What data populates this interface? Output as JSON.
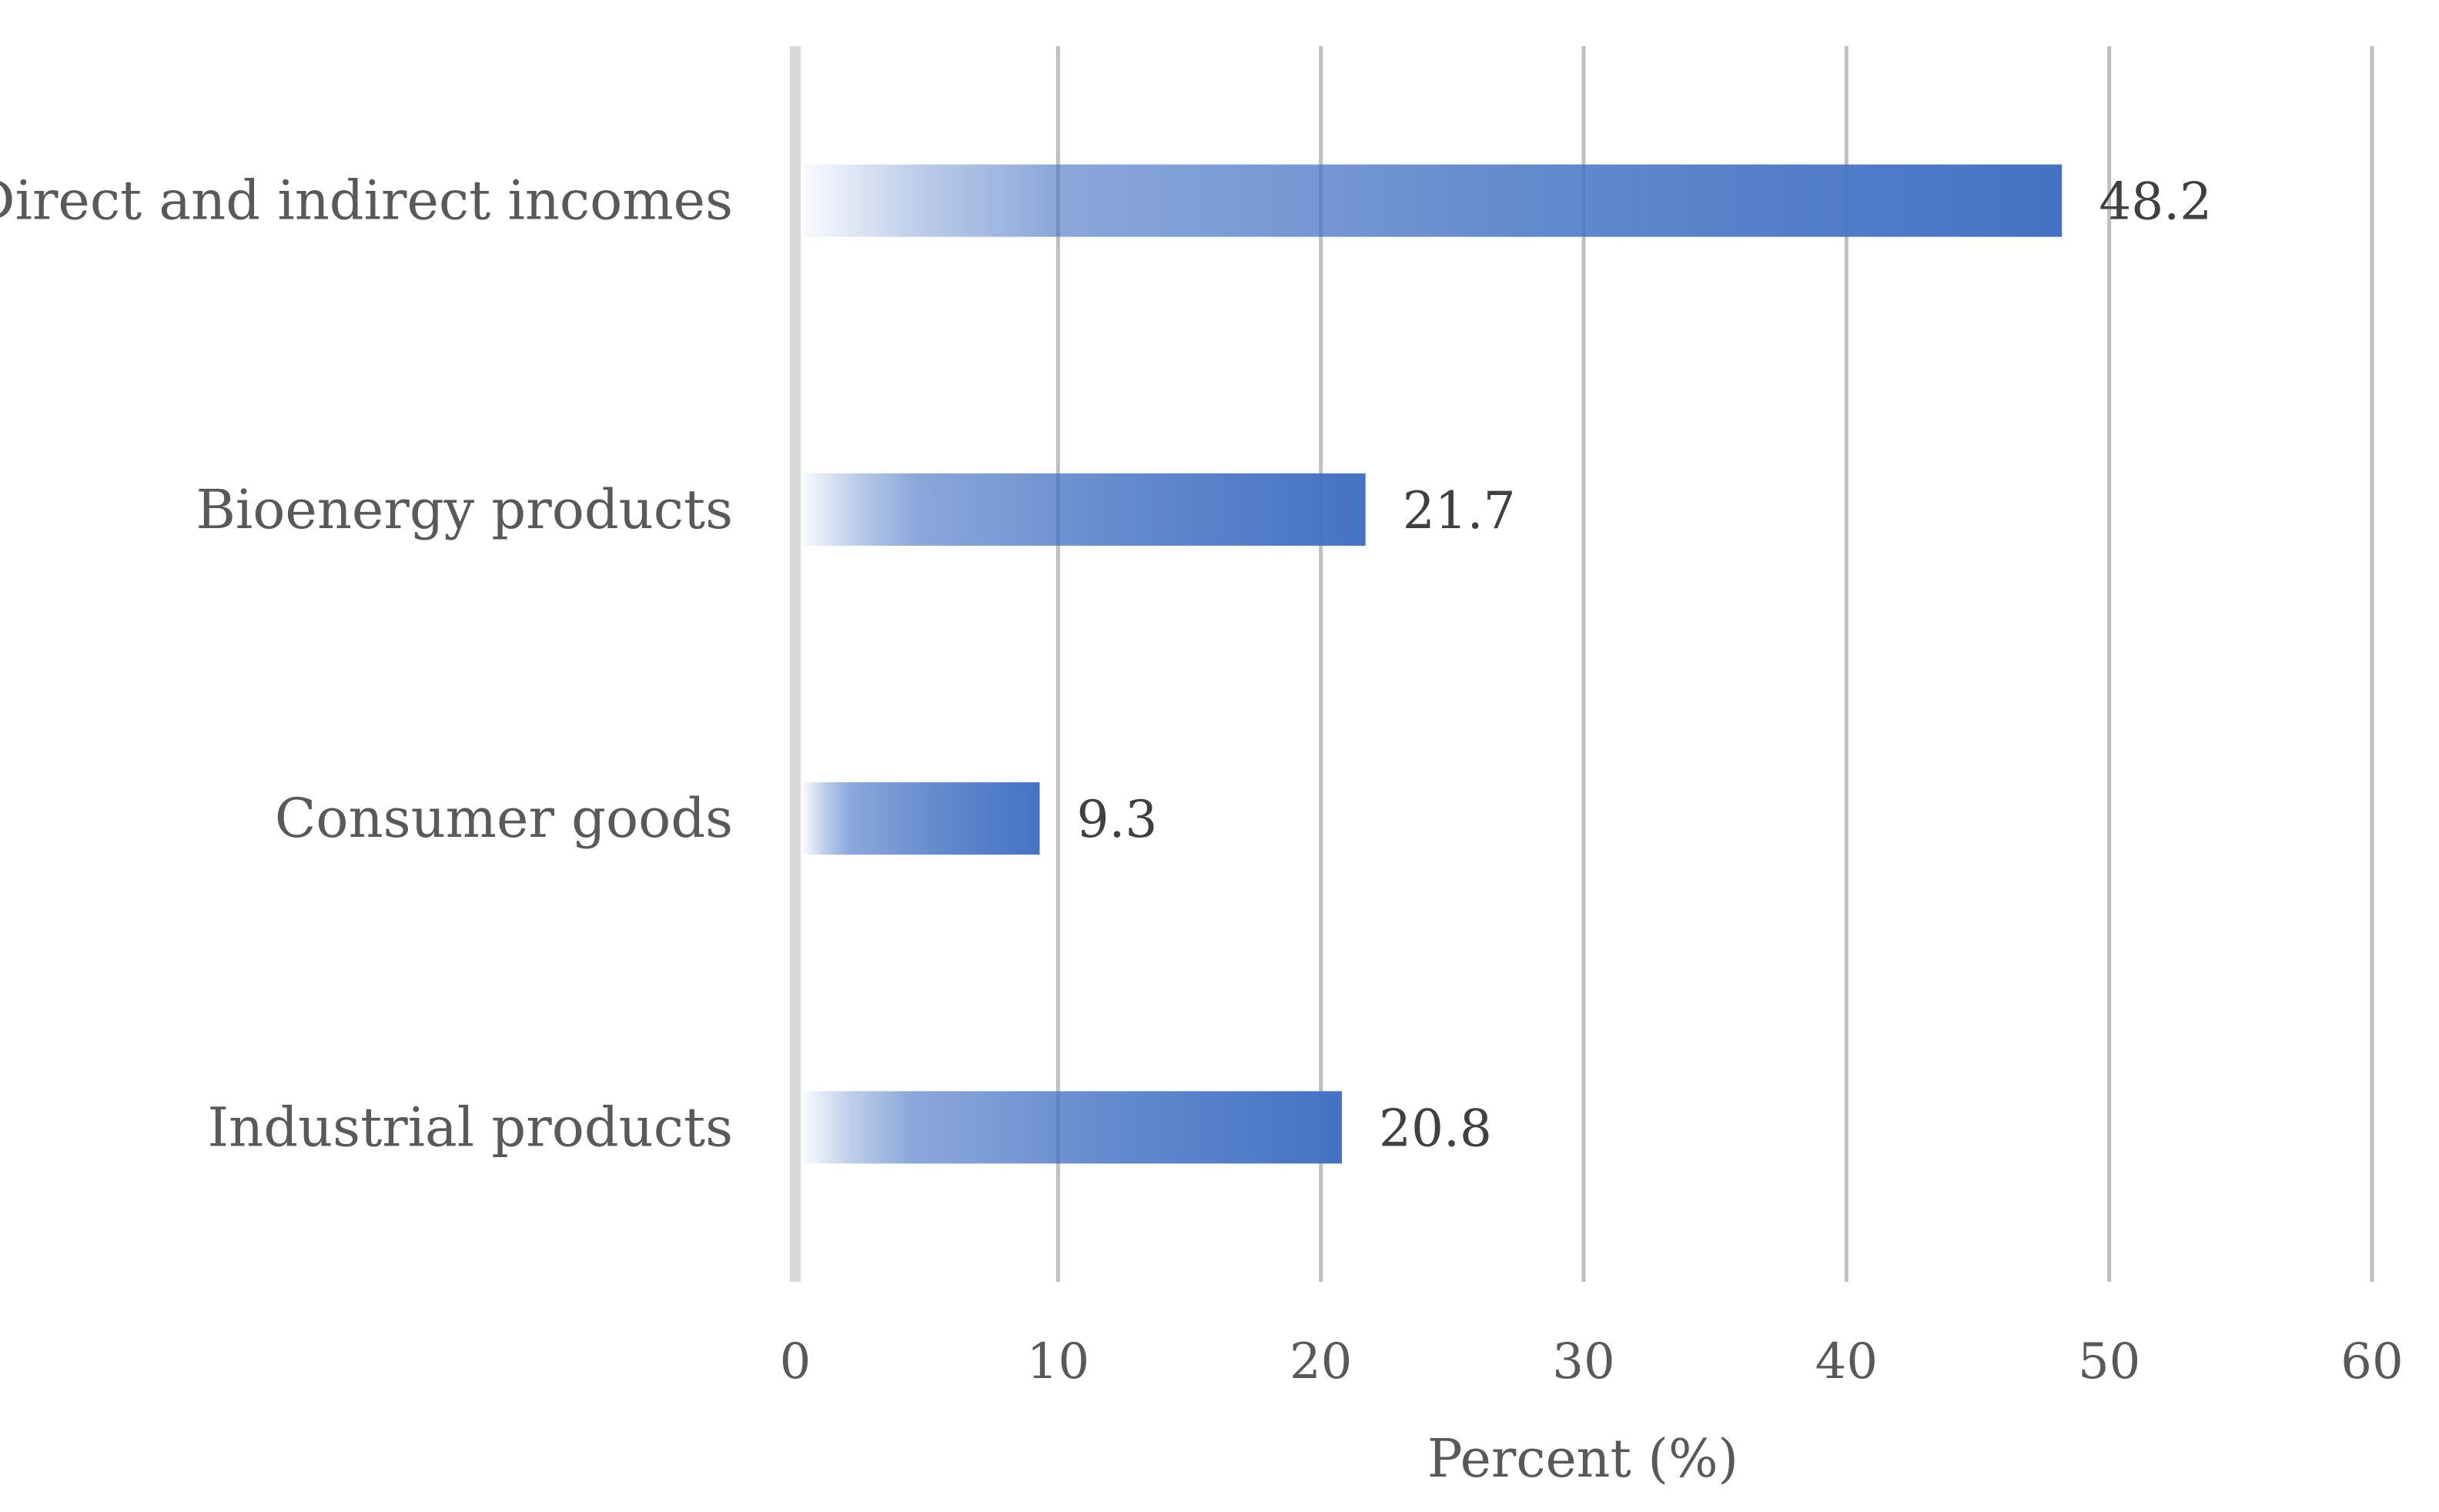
{
  "chart_data": {
    "type": "bar",
    "orientation": "horizontal",
    "categories": [
      "Direct and indirect incomes",
      "Bioenergy products",
      "Consumer goods",
      "Industrial products"
    ],
    "values": [
      48.2,
      21.7,
      9.3,
      20.8
    ],
    "data_labels": [
      "48.2",
      "21.7",
      "9.3",
      "20.8"
    ],
    "title": "",
    "xlabel": "Percent (%)",
    "ylabel": "",
    "xlim": [
      0,
      60
    ],
    "xticks": [
      0,
      10,
      20,
      30,
      40,
      50,
      60
    ],
    "xtick_labels": [
      "0",
      "10",
      "20",
      "30",
      "40",
      "50",
      "60"
    ],
    "grid": true,
    "legend": "none",
    "bar_color": "#4472C4",
    "grid_color": "#BFBFBF"
  }
}
